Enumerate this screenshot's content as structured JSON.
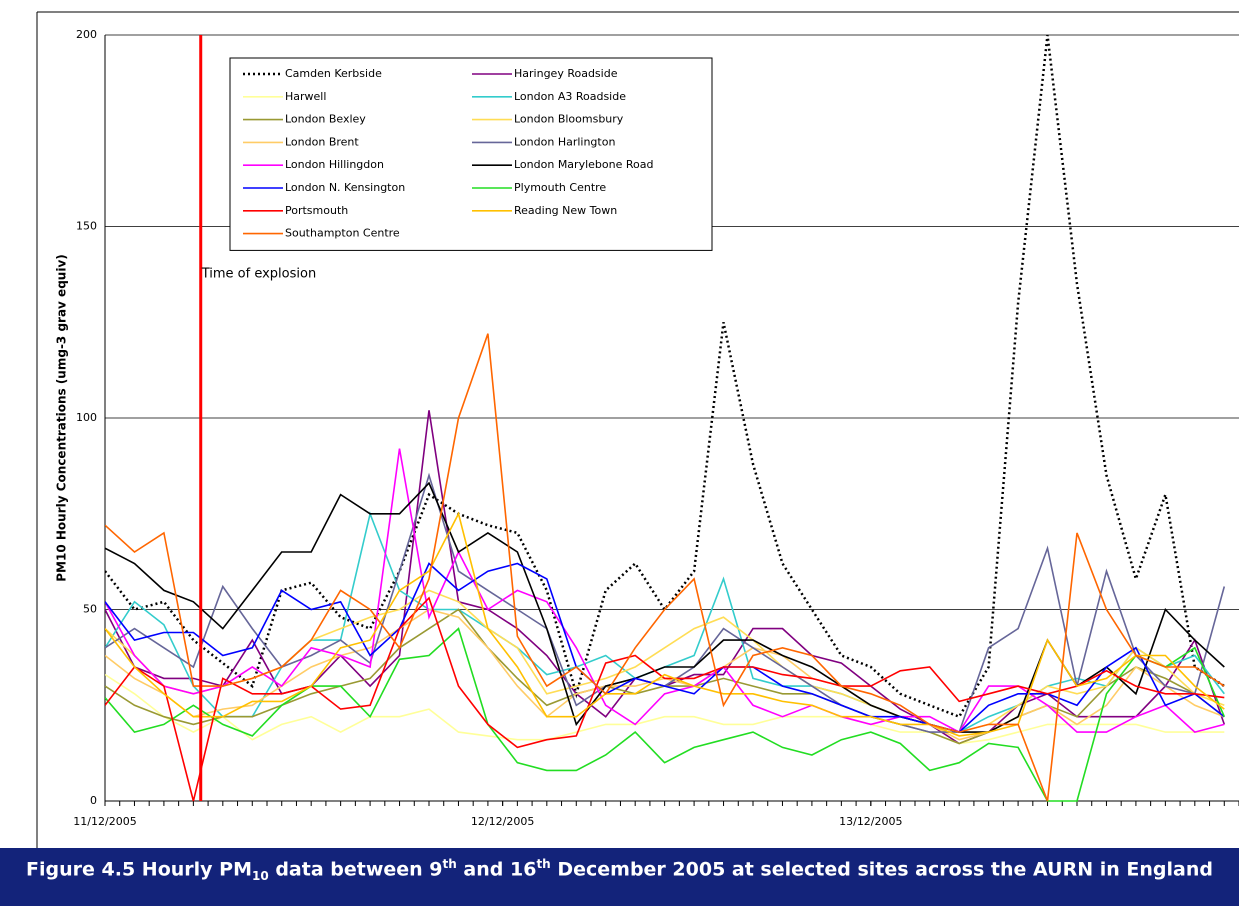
{
  "chart_data": {
    "type": "line",
    "y_label": "PM10 Hourly Concentrations (umg-3 grav equiv)",
    "x": [
      0,
      2,
      4,
      6,
      8,
      10,
      12,
      14,
      16,
      18,
      20,
      22,
      24,
      26,
      28,
      30,
      32,
      34,
      36,
      38,
      40,
      42,
      44,
      46,
      48,
      50,
      52,
      54,
      56,
      58,
      60,
      62,
      64,
      66,
      68,
      70,
      72,
      74,
      76
    ],
    "xlim": [
      0,
      77
    ],
    "xticks": [
      {
        "value": 0,
        "label": "11/12/2005"
      },
      {
        "value": 27,
        "label": "12/12/2005"
      },
      {
        "value": 52,
        "label": "13/12/2005"
      }
    ],
    "ylim": [
      0,
      200
    ],
    "yticks": [
      0,
      50,
      100,
      150,
      200
    ],
    "grid": true,
    "legend_columns": 2,
    "annotations": [
      {
        "text": "Time of explosion",
        "x": 6.5,
        "color": "#ff0000"
      }
    ],
    "series": [
      {
        "name": "Camden Kerbside",
        "color": "#000000",
        "style": "dotted",
        "values": [
          60,
          50,
          52,
          42,
          36,
          30,
          55,
          57,
          48,
          45,
          60,
          80,
          75,
          72,
          70,
          55,
          28,
          55,
          62,
          50,
          60,
          125,
          88,
          62,
          50,
          38,
          35,
          28,
          25,
          22,
          35,
          130,
          200,
          135,
          85,
          58,
          80,
          35,
          30
        ]
      },
      {
        "name": "Haringey Roadside",
        "color": "#800080",
        "values": [
          50,
          35,
          32,
          32,
          30,
          42,
          28,
          30,
          38,
          30,
          38,
          102,
          52,
          50,
          45,
          38,
          28,
          22,
          32,
          30,
          33,
          33,
          45,
          45,
          38,
          36,
          30,
          24,
          20,
          15,
          18,
          25,
          28,
          22,
          22,
          22,
          30,
          42,
          20
        ]
      },
      {
        "name": "Harwell",
        "color": "#ffff99",
        "values": [
          33,
          28,
          22,
          18,
          22,
          16,
          20,
          22,
          18,
          22,
          22,
          24,
          18,
          17,
          16,
          16,
          18,
          20,
          20,
          22,
          22,
          20,
          20,
          22,
          22,
          22,
          20,
          18,
          18,
          15,
          16,
          18,
          20,
          20,
          20,
          20,
          18,
          18,
          18
        ]
      },
      {
        "name": "London A3 Roadside",
        "color": "#33cccc",
        "values": [
          40,
          52,
          46,
          30,
          22,
          22,
          35,
          42,
          42,
          75,
          55,
          50,
          50,
          45,
          40,
          33,
          35,
          38,
          32,
          35,
          38,
          58,
          32,
          30,
          30,
          28,
          25,
          22,
          20,
          18,
          22,
          25,
          30,
          32,
          30,
          40,
          35,
          38,
          28
        ]
      },
      {
        "name": "London Bexley",
        "color": "#999933",
        "values": [
          30,
          25,
          22,
          20,
          22,
          22,
          25,
          28,
          30,
          32,
          40,
          45,
          50,
          40,
          32,
          25,
          28,
          30,
          28,
          30,
          30,
          32,
          30,
          28,
          28,
          25,
          22,
          20,
          18,
          15,
          18,
          22,
          25,
          22,
          30,
          35,
          32,
          28,
          22
        ]
      },
      {
        "name": "London Bloomsbury",
        "color": "#ffdd55",
        "values": [
          45,
          38,
          30,
          28,
          30,
          32,
          35,
          42,
          45,
          48,
          50,
          55,
          52,
          45,
          40,
          28,
          30,
          32,
          35,
          40,
          45,
          48,
          42,
          35,
          30,
          28,
          25,
          22,
          20,
          18,
          20,
          25,
          30,
          28,
          30,
          40,
          35,
          28,
          25
        ]
      },
      {
        "name": "London Brent",
        "color": "#ffcc66",
        "values": [
          38,
          32,
          28,
          22,
          24,
          25,
          30,
          35,
          38,
          40,
          45,
          50,
          48,
          40,
          30,
          22,
          28,
          30,
          30,
          32,
          30,
          35,
          40,
          38,
          32,
          30,
          25,
          22,
          20,
          16,
          18,
          22,
          25,
          20,
          25,
          35,
          30,
          25,
          22
        ]
      },
      {
        "name": "London Harlington",
        "color": "#666699",
        "values": [
          40,
          45,
          40,
          35,
          56,
          45,
          35,
          38,
          42,
          36,
          60,
          85,
          60,
          55,
          50,
          45,
          25,
          30,
          32,
          30,
          35,
          45,
          40,
          35,
          30,
          25,
          22,
          20,
          18,
          18,
          40,
          45,
          66,
          30,
          60,
          38,
          30,
          28,
          56
        ]
      },
      {
        "name": "London Hillingdon",
        "color": "#ff00ff",
        "values": [
          52,
          38,
          30,
          28,
          30,
          35,
          30,
          40,
          38,
          35,
          92,
          48,
          65,
          50,
          55,
          52,
          40,
          25,
          20,
          28,
          30,
          35,
          25,
          22,
          25,
          22,
          20,
          22,
          22,
          18,
          30,
          30,
          25,
          18,
          18,
          22,
          25,
          18,
          20
        ]
      },
      {
        "name": "London Marylebone Road",
        "color": "#000000",
        "values": [
          66,
          62,
          55,
          52,
          45,
          55,
          65,
          65,
          80,
          75,
          75,
          83,
          65,
          70,
          65,
          45,
          20,
          30,
          32,
          35,
          35,
          42,
          42,
          38,
          35,
          30,
          25,
          22,
          20,
          18,
          18,
          22,
          42,
          30,
          35,
          28,
          50,
          42,
          35
        ]
      },
      {
        "name": "London N. Kensington",
        "color": "#0000ff",
        "values": [
          52,
          42,
          44,
          44,
          38,
          40,
          55,
          50,
          52,
          38,
          45,
          62,
          55,
          60,
          62,
          58,
          35,
          28,
          32,
          30,
          28,
          35,
          35,
          30,
          28,
          25,
          22,
          22,
          20,
          18,
          25,
          28,
          28,
          25,
          35,
          40,
          25,
          28,
          22
        ]
      },
      {
        "name": "Plymouth Centre",
        "color": "#22dd22",
        "values": [
          27,
          18,
          20,
          25,
          20,
          17,
          25,
          30,
          30,
          22,
          37,
          38,
          45,
          20,
          10,
          8,
          8,
          12,
          18,
          10,
          14,
          16,
          18,
          14,
          12,
          16,
          18,
          15,
          8,
          10,
          15,
          14,
          0,
          0,
          28,
          38,
          35,
          40,
          22
        ]
      },
      {
        "name": "Portsmouth",
        "color": "#ff0000",
        "values": [
          25,
          35,
          30,
          0,
          32,
          28,
          28,
          30,
          24,
          25,
          45,
          53,
          30,
          20,
          14,
          16,
          17,
          36,
          38,
          32,
          32,
          35,
          35,
          33,
          32,
          30,
          30,
          34,
          35,
          26,
          28,
          30,
          28,
          30,
          34,
          30,
          28,
          28,
          27
        ]
      },
      {
        "name": "Reading New Town",
        "color": "#ffc000",
        "values": [
          45,
          35,
          28,
          22,
          22,
          26,
          26,
          30,
          40,
          42,
          55,
          60,
          75,
          45,
          35,
          22,
          22,
          28,
          28,
          33,
          30,
          28,
          28,
          26,
          25,
          22,
          22,
          20,
          20,
          17,
          18,
          20,
          42,
          30,
          32,
          38,
          38,
          30,
          24
        ]
      },
      {
        "name": "Southampton Centre",
        "color": "#ff6600",
        "values": [
          72,
          65,
          70,
          30,
          30,
          32,
          35,
          42,
          55,
          50,
          40,
          58,
          100,
          122,
          43,
          30,
          35,
          28,
          40,
          50,
          58,
          25,
          38,
          40,
          38,
          30,
          28,
          25,
          20,
          18,
          20,
          20,
          0,
          70,
          50,
          38,
          35,
          35,
          30
        ]
      }
    ]
  },
  "caption": {
    "parts": [
      "Figure 4.5 Hourly PM",
      "10",
      " data between 9",
      "th",
      " and 16",
      "th",
      " December 2005 at selected sites across the AURN in England"
    ]
  }
}
